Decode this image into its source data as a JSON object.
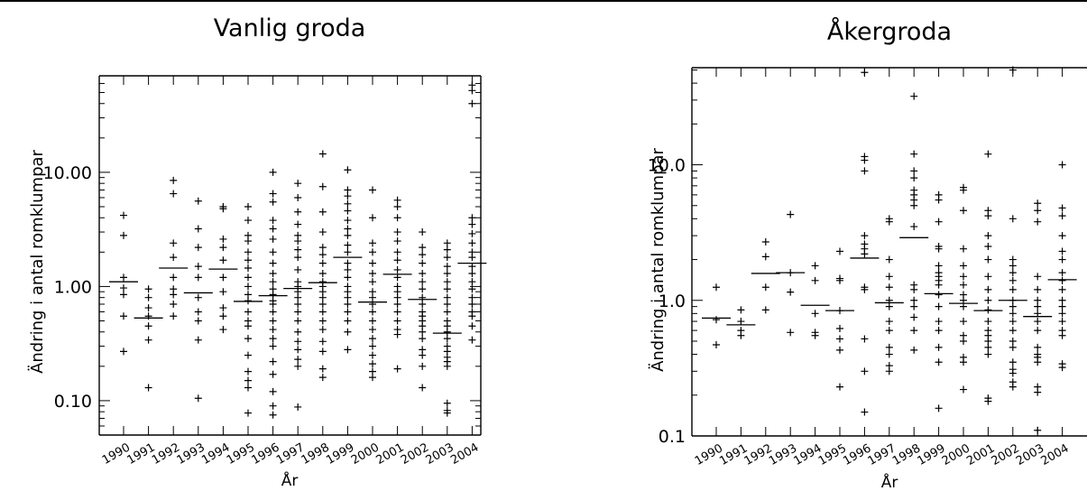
{
  "chart_data": [
    {
      "type": "scatter",
      "title": "Vanlig groda",
      "xlabel": "År",
      "ylabel": "Ändring i antal romklumpar",
      "yscale": "log",
      "ylim": [
        0.05,
        70
      ],
      "ytick_values": [
        0.1,
        1,
        10
      ],
      "ytick_labels": [
        "0.10",
        "1.00",
        "10.00"
      ],
      "categories": [
        "1990",
        "1991",
        "1992",
        "1993",
        "1994",
        "1995",
        "1996",
        "1997",
        "1998",
        "1999",
        "2000",
        "2001",
        "2002",
        "2003",
        "2004"
      ],
      "medians": [
        1.1,
        0.53,
        1.45,
        0.88,
        1.42,
        0.74,
        0.83,
        0.96,
        1.08,
        1.8,
        0.73,
        1.28,
        0.77,
        0.39,
        1.6
      ],
      "points": [
        [
          4.2,
          2.8,
          1.2,
          0.97,
          0.85,
          0.55,
          0.27
        ],
        [
          0.95,
          0.8,
          0.65,
          0.55,
          0.45,
          0.34,
          0.13
        ],
        [
          8.5,
          6.5,
          2.4,
          1.8,
          1.2,
          0.95,
          0.85,
          0.7,
          0.55
        ],
        [
          5.6,
          3.2,
          2.2,
          1.5,
          1.2,
          0.8,
          0.6,
          0.5,
          0.34,
          0.105
        ],
        [
          5.0,
          4.8,
          2.6,
          2.2,
          1.7,
          1.2,
          0.9,
          0.65,
          0.55,
          0.42
        ],
        [
          5.0,
          3.8,
          2.8,
          2.5,
          2.0,
          1.7,
          1.45,
          1.2,
          1.0,
          0.85,
          0.75,
          0.6,
          0.5,
          0.45,
          0.35,
          0.25,
          0.18,
          0.15,
          0.13,
          0.078
        ],
        [
          10.0,
          6.5,
          5.5,
          3.8,
          3.2,
          2.6,
          2.0,
          1.6,
          1.3,
          1.1,
          0.95,
          0.85,
          0.75,
          0.7,
          0.6,
          0.5,
          0.42,
          0.35,
          0.3,
          0.22,
          0.17,
          0.12,
          0.09,
          0.075
        ],
        [
          8.0,
          6.0,
          4.5,
          3.5,
          2.8,
          2.5,
          2.1,
          1.8,
          1.4,
          1.1,
          1.0,
          0.9,
          0.8,
          0.7,
          0.6,
          0.5,
          0.4,
          0.33,
          0.28,
          0.23,
          0.2,
          0.088
        ],
        [
          14.5,
          7.5,
          4.5,
          3.0,
          2.2,
          1.9,
          1.6,
          1.3,
          1.1,
          1.0,
          0.9,
          0.8,
          0.7,
          0.6,
          0.5,
          0.42,
          0.33,
          0.27,
          0.19,
          0.16
        ],
        [
          10.5,
          7.0,
          6.2,
          5.3,
          4.6,
          3.8,
          3.2,
          2.8,
          2.3,
          2.0,
          1.6,
          1.4,
          1.2,
          1.0,
          0.9,
          0.8,
          0.7,
          0.6,
          0.5,
          0.4,
          0.28
        ],
        [
          7.0,
          4.0,
          2.4,
          2.0,
          1.6,
          1.3,
          1.1,
          0.9,
          0.8,
          0.7,
          0.6,
          0.5,
          0.42,
          0.35,
          0.3,
          0.25,
          0.21,
          0.18,
          0.16
        ],
        [
          5.7,
          5.0,
          4.0,
          3.0,
          2.5,
          2.0,
          1.7,
          1.4,
          1.2,
          1.0,
          0.9,
          0.8,
          0.7,
          0.6,
          0.5,
          0.42,
          0.38,
          0.19
        ],
        [
          3.0,
          2.2,
          1.9,
          1.6,
          1.3,
          1.1,
          0.95,
          0.8,
          0.7,
          0.6,
          0.55,
          0.5,
          0.45,
          0.4,
          0.35,
          0.28,
          0.25,
          0.2,
          0.13
        ],
        [
          2.4,
          2.1,
          1.8,
          1.5,
          1.3,
          1.1,
          0.95,
          0.8,
          0.7,
          0.6,
          0.5,
          0.45,
          0.4,
          0.35,
          0.3,
          0.27,
          0.24,
          0.22,
          0.2,
          0.095,
          0.082,
          0.078
        ],
        [
          58,
          52,
          40,
          4.0,
          3.5,
          2.9,
          2.4,
          2.0,
          1.8,
          1.5,
          1.3,
          1.1,
          0.95,
          0.8,
          0.7,
          0.6,
          0.55,
          0.45,
          0.34
        ]
      ]
    },
    {
      "type": "scatter",
      "title": "Åkergroda",
      "xlabel": "År",
      "ylabel": "Ändring i antal romklumpar",
      "yscale": "log",
      "ylim": [
        0.1,
        52
      ],
      "ytick_values": [
        0.1,
        1,
        10
      ],
      "ytick_labels": [
        "0.1",
        "1.0",
        "10.0"
      ],
      "categories": [
        "1990",
        "1991",
        "1992",
        "1993",
        "1994",
        "1995",
        "1996",
        "1997",
        "1998",
        "1999",
        "2000",
        "2001",
        "2002",
        "2003",
        "2004"
      ],
      "medians": [
        0.74,
        0.66,
        1.58,
        1.6,
        0.92,
        0.84,
        2.05,
        0.96,
        2.9,
        1.12,
        0.95,
        0.84,
        1.0,
        0.76,
        1.42
      ],
      "points": [
        [
          1.25,
          0.72,
          0.47
        ],
        [
          0.85,
          0.7,
          0.6,
          0.55
        ],
        [
          2.7,
          2.1,
          1.25,
          0.85
        ],
        [
          4.3,
          1.6,
          1.15,
          0.58
        ],
        [
          1.8,
          1.4,
          0.8,
          0.58,
          0.55
        ],
        [
          2.3,
          1.45,
          1.4,
          0.84,
          0.62,
          0.52,
          0.43,
          0.23
        ],
        [
          48,
          11.5,
          10.8,
          9.0,
          3.0,
          2.6,
          2.4,
          2.2,
          1.25,
          1.2,
          0.52,
          0.3,
          0.15
        ],
        [
          4.0,
          3.8,
          2.0,
          1.5,
          1.25,
          1.0,
          0.9,
          0.7,
          0.6,
          0.45,
          0.4,
          0.33,
          0.3
        ],
        [
          32,
          12.0,
          9.0,
          8.0,
          6.5,
          6.0,
          5.5,
          5.0,
          3.5,
          1.3,
          1.2,
          1.0,
          0.9,
          0.75,
          0.6,
          0.43
        ],
        [
          6.0,
          5.5,
          3.8,
          2.5,
          2.4,
          1.8,
          1.6,
          1.5,
          1.4,
          1.3,
          1.1,
          0.9,
          0.7,
          0.6,
          0.45,
          0.35,
          0.16
        ],
        [
          6.8,
          6.5,
          4.6,
          2.4,
          1.8,
          1.5,
          1.3,
          1.1,
          1.0,
          0.9,
          0.7,
          0.55,
          0.5,
          0.38,
          0.35,
          0.22
        ],
        [
          12.0,
          4.6,
          4.2,
          3.0,
          2.5,
          2.0,
          1.5,
          1.2,
          1.0,
          0.85,
          0.7,
          0.6,
          0.55,
          0.5,
          0.45,
          0.4,
          0.19,
          0.18
        ],
        [
          50,
          4.0,
          2.0,
          1.8,
          1.6,
          1.4,
          1.2,
          1.0,
          0.9,
          0.8,
          0.7,
          0.6,
          0.5,
          0.45,
          0.35,
          0.31,
          0.29,
          0.25,
          0.23
        ],
        [
          5.2,
          4.6,
          3.8,
          1.5,
          1.2,
          1.0,
          0.9,
          0.8,
          0.7,
          0.6,
          0.45,
          0.4,
          0.38,
          0.35,
          0.23,
          0.21,
          0.11
        ],
        [
          10.0,
          4.8,
          4.2,
          3.0,
          2.3,
          2.0,
          1.6,
          1.4,
          1.2,
          1.0,
          0.9,
          0.8,
          0.7,
          0.6,
          0.55,
          0.34,
          0.32
        ]
      ]
    }
  ]
}
